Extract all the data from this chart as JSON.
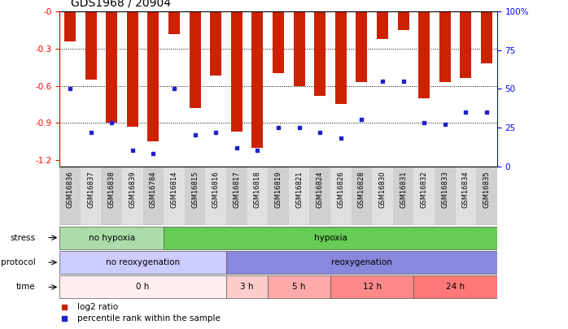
{
  "title": "GDS1968 / 20904",
  "samples": [
    "GSM16836",
    "GSM16837",
    "GSM16838",
    "GSM16839",
    "GSM16784",
    "GSM16814",
    "GSM16815",
    "GSM16816",
    "GSM16817",
    "GSM16818",
    "GSM16819",
    "GSM16821",
    "GSM16824",
    "GSM16826",
    "GSM16828",
    "GSM16830",
    "GSM16831",
    "GSM16832",
    "GSM16833",
    "GSM16834",
    "GSM16835"
  ],
  "log2_ratio": [
    -0.24,
    -0.55,
    -0.9,
    -0.93,
    -1.05,
    -0.18,
    -0.78,
    -0.52,
    -0.97,
    -1.1,
    -0.5,
    -0.6,
    -0.68,
    -0.75,
    -0.57,
    -0.22,
    -0.15,
    -0.7,
    -0.57,
    -0.54,
    -0.42
  ],
  "pct_values": [
    50,
    22,
    28,
    10,
    8,
    50,
    20,
    22,
    12,
    10,
    25,
    25,
    22,
    18,
    30,
    55,
    55,
    28,
    27,
    35,
    35
  ],
  "bar_color": "#cc2200",
  "dot_color": "#2222cc",
  "ylim_left": [
    -1.25,
    0.0
  ],
  "ylim_right": [
    0,
    100
  ],
  "stress_groups": [
    {
      "label": "no hypoxia",
      "start": 0,
      "end": 5,
      "color": "#aaddaa"
    },
    {
      "label": "hypoxia",
      "start": 5,
      "end": 21,
      "color": "#66cc55"
    }
  ],
  "protocol_groups": [
    {
      "label": "no reoxygenation",
      "start": 0,
      "end": 8,
      "color": "#ccccff"
    },
    {
      "label": "reoxygenation",
      "start": 8,
      "end": 21,
      "color": "#8888dd"
    }
  ],
  "time_groups": [
    {
      "label": "0 h",
      "start": 0,
      "end": 8,
      "color": "#ffeeee"
    },
    {
      "label": "3 h",
      "start": 8,
      "end": 10,
      "color": "#ffcccc"
    },
    {
      "label": "5 h",
      "start": 10,
      "end": 13,
      "color": "#ffaaaa"
    },
    {
      "label": "12 h",
      "start": 13,
      "end": 17,
      "color": "#ff8888"
    },
    {
      "label": "24 h",
      "start": 17,
      "end": 21,
      "color": "#ff7777"
    }
  ],
  "left_yticks": [
    0.0,
    -0.3,
    -0.6,
    -0.9,
    -1.2
  ],
  "right_yticks": [
    0,
    25,
    50,
    75,
    100
  ],
  "background_color": "#ffffff"
}
